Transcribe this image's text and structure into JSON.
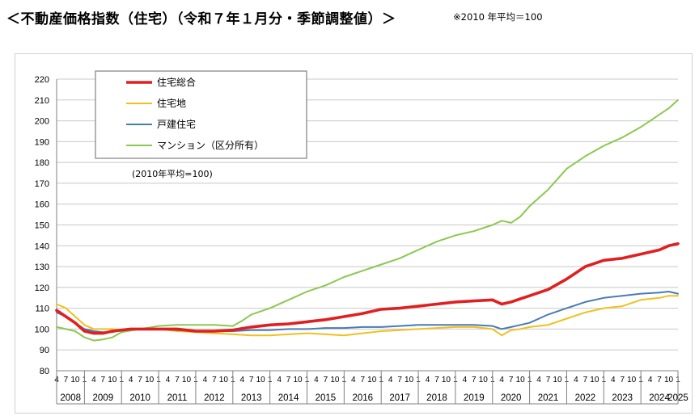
{
  "header": {
    "title": "＜不動産価格指数（住宅）（令和７年１月分・季節調整値）＞",
    "note": "※2010 年平均＝100"
  },
  "chart_data": {
    "type": "line",
    "base_note": "(2010年平均=100)",
    "ylim": [
      80,
      220
    ],
    "yticks": [
      80,
      90,
      100,
      110,
      120,
      130,
      140,
      150,
      160,
      170,
      180,
      190,
      200,
      210,
      220
    ],
    "x_start": "2008-04",
    "x_end": "2025-01",
    "month_tick_labels": [
      "4",
      "7",
      "10",
      "1"
    ],
    "years": [
      "2008",
      "2009",
      "2010",
      "2011",
      "2012",
      "2013",
      "2014",
      "2015",
      "2016",
      "2017",
      "2018",
      "2019",
      "2020",
      "2021",
      "2022",
      "2023",
      "2024",
      "2025"
    ],
    "legend_placement": "top-left",
    "grid": "horizontal",
    "series": [
      {
        "name": "住宅総合",
        "color": "#e02020",
        "points": [
          [
            "2008-04",
            109
          ],
          [
            "2008-07",
            106
          ],
          [
            "2008-10",
            103
          ],
          [
            "2009-01",
            99
          ],
          [
            "2009-04",
            98
          ],
          [
            "2009-07",
            98
          ],
          [
            "2009-10",
            99
          ],
          [
            "2010-01",
            99.5
          ],
          [
            "2010-04",
            100
          ],
          [
            "2010-07",
            100
          ],
          [
            "2010-10",
            100
          ],
          [
            "2011-01",
            100
          ],
          [
            "2011-04",
            100
          ],
          [
            "2011-07",
            100
          ],
          [
            "2011-10",
            99.5
          ],
          [
            "2012-01",
            99
          ],
          [
            "2012-07",
            99
          ],
          [
            "2013-01",
            99.5
          ],
          [
            "2013-07",
            101
          ],
          [
            "2014-01",
            102
          ],
          [
            "2014-07",
            102.5
          ],
          [
            "2015-01",
            103.5
          ],
          [
            "2015-07",
            104.5
          ],
          [
            "2016-01",
            106
          ],
          [
            "2016-07",
            107.5
          ],
          [
            "2017-01",
            109.5
          ],
          [
            "2017-07",
            110
          ],
          [
            "2018-01",
            111
          ],
          [
            "2018-07",
            112
          ],
          [
            "2019-01",
            113
          ],
          [
            "2019-07",
            113.5
          ],
          [
            "2020-01",
            114
          ],
          [
            "2020-04",
            112
          ],
          [
            "2020-07",
            113
          ],
          [
            "2020-10",
            114.5
          ],
          [
            "2021-01",
            116
          ],
          [
            "2021-07",
            119
          ],
          [
            "2022-01",
            124
          ],
          [
            "2022-07",
            130
          ],
          [
            "2023-01",
            133
          ],
          [
            "2023-07",
            134
          ],
          [
            "2024-01",
            136
          ],
          [
            "2024-07",
            138
          ],
          [
            "2024-10",
            140
          ],
          [
            "2025-01",
            141
          ]
        ]
      },
      {
        "name": "住宅地",
        "color": "#f0c020",
        "points": [
          [
            "2008-04",
            112
          ],
          [
            "2008-07",
            110
          ],
          [
            "2008-10",
            106
          ],
          [
            "2009-01",
            102
          ],
          [
            "2009-04",
            100
          ],
          [
            "2009-07",
            100
          ],
          [
            "2009-10",
            100
          ],
          [
            "2010-01",
            99.5
          ],
          [
            "2010-07",
            100
          ],
          [
            "2011-01",
            100
          ],
          [
            "2011-07",
            99
          ],
          [
            "2012-01",
            98.5
          ],
          [
            "2012-07",
            98
          ],
          [
            "2013-01",
            97.5
          ],
          [
            "2013-07",
            97
          ],
          [
            "2014-01",
            97
          ],
          [
            "2014-07",
            97.5
          ],
          [
            "2015-01",
            98
          ],
          [
            "2015-07",
            97.5
          ],
          [
            "2016-01",
            97
          ],
          [
            "2016-07",
            98
          ],
          [
            "2017-01",
            99
          ],
          [
            "2017-07",
            99.5
          ],
          [
            "2018-01",
            100
          ],
          [
            "2018-07",
            100.5
          ],
          [
            "2019-01",
            101
          ],
          [
            "2019-07",
            101
          ],
          [
            "2020-01",
            100
          ],
          [
            "2020-04",
            97
          ],
          [
            "2020-07",
            99.5
          ],
          [
            "2020-10",
            100
          ],
          [
            "2021-01",
            101
          ],
          [
            "2021-07",
            102
          ],
          [
            "2022-01",
            105
          ],
          [
            "2022-07",
            108
          ],
          [
            "2023-01",
            110
          ],
          [
            "2023-07",
            111
          ],
          [
            "2024-01",
            114
          ],
          [
            "2024-07",
            115
          ],
          [
            "2024-10",
            116
          ],
          [
            "2025-01",
            116
          ]
        ]
      },
      {
        "name": "戸建住宅",
        "color": "#4a7ab8",
        "points": [
          [
            "2008-04",
            108
          ],
          [
            "2008-07",
            106
          ],
          [
            "2008-10",
            103
          ],
          [
            "2009-01",
            100
          ],
          [
            "2009-04",
            99
          ],
          [
            "2009-07",
            98.5
          ],
          [
            "2009-10",
            98.5
          ],
          [
            "2010-01",
            99.5
          ],
          [
            "2010-07",
            100
          ],
          [
            "2011-01",
            100
          ],
          [
            "2011-07",
            99.5
          ],
          [
            "2012-01",
            99
          ],
          [
            "2012-07",
            99
          ],
          [
            "2013-01",
            99
          ],
          [
            "2013-07",
            99.5
          ],
          [
            "2014-01",
            99.5
          ],
          [
            "2014-07",
            100
          ],
          [
            "2015-01",
            100
          ],
          [
            "2015-07",
            100.5
          ],
          [
            "2016-01",
            100.5
          ],
          [
            "2016-07",
            101
          ],
          [
            "2017-01",
            101
          ],
          [
            "2017-07",
            101.5
          ],
          [
            "2018-01",
            102
          ],
          [
            "2018-07",
            102
          ],
          [
            "2019-01",
            102
          ],
          [
            "2019-07",
            102
          ],
          [
            "2020-01",
            101.5
          ],
          [
            "2020-04",
            100
          ],
          [
            "2020-07",
            101
          ],
          [
            "2020-10",
            102
          ],
          [
            "2021-01",
            103
          ],
          [
            "2021-07",
            107
          ],
          [
            "2022-01",
            110
          ],
          [
            "2022-07",
            113
          ],
          [
            "2023-01",
            115
          ],
          [
            "2023-07",
            116
          ],
          [
            "2024-01",
            117
          ],
          [
            "2024-07",
            117.5
          ],
          [
            "2024-10",
            118
          ],
          [
            "2025-01",
            117
          ]
        ]
      },
      {
        "name": "マンション（区分所有）",
        "color": "#8cc850",
        "points": [
          [
            "2008-04",
            101
          ],
          [
            "2008-07",
            100
          ],
          [
            "2008-10",
            99
          ],
          [
            "2009-01",
            96
          ],
          [
            "2009-04",
            94.5
          ],
          [
            "2009-07",
            95
          ],
          [
            "2009-10",
            96
          ],
          [
            "2010-01",
            98.5
          ],
          [
            "2010-07",
            100
          ],
          [
            "2011-01",
            101.5
          ],
          [
            "2011-07",
            102
          ],
          [
            "2012-01",
            102
          ],
          [
            "2012-07",
            102
          ],
          [
            "2013-01",
            101.5
          ],
          [
            "2013-04",
            104
          ],
          [
            "2013-07",
            107
          ],
          [
            "2014-01",
            110
          ],
          [
            "2014-07",
            114
          ],
          [
            "2015-01",
            118
          ],
          [
            "2015-07",
            121
          ],
          [
            "2016-01",
            125
          ],
          [
            "2016-07",
            128
          ],
          [
            "2017-01",
            131
          ],
          [
            "2017-07",
            134
          ],
          [
            "2018-01",
            138
          ],
          [
            "2018-07",
            142
          ],
          [
            "2019-01",
            145
          ],
          [
            "2019-07",
            147
          ],
          [
            "2020-01",
            150
          ],
          [
            "2020-04",
            152
          ],
          [
            "2020-07",
            151
          ],
          [
            "2020-10",
            154
          ],
          [
            "2021-01",
            159
          ],
          [
            "2021-07",
            167
          ],
          [
            "2022-01",
            177
          ],
          [
            "2022-07",
            183
          ],
          [
            "2023-01",
            188
          ],
          [
            "2023-07",
            192
          ],
          [
            "2024-01",
            197
          ],
          [
            "2024-07",
            203
          ],
          [
            "2024-10",
            206
          ],
          [
            "2025-01",
            210
          ]
        ]
      }
    ]
  }
}
